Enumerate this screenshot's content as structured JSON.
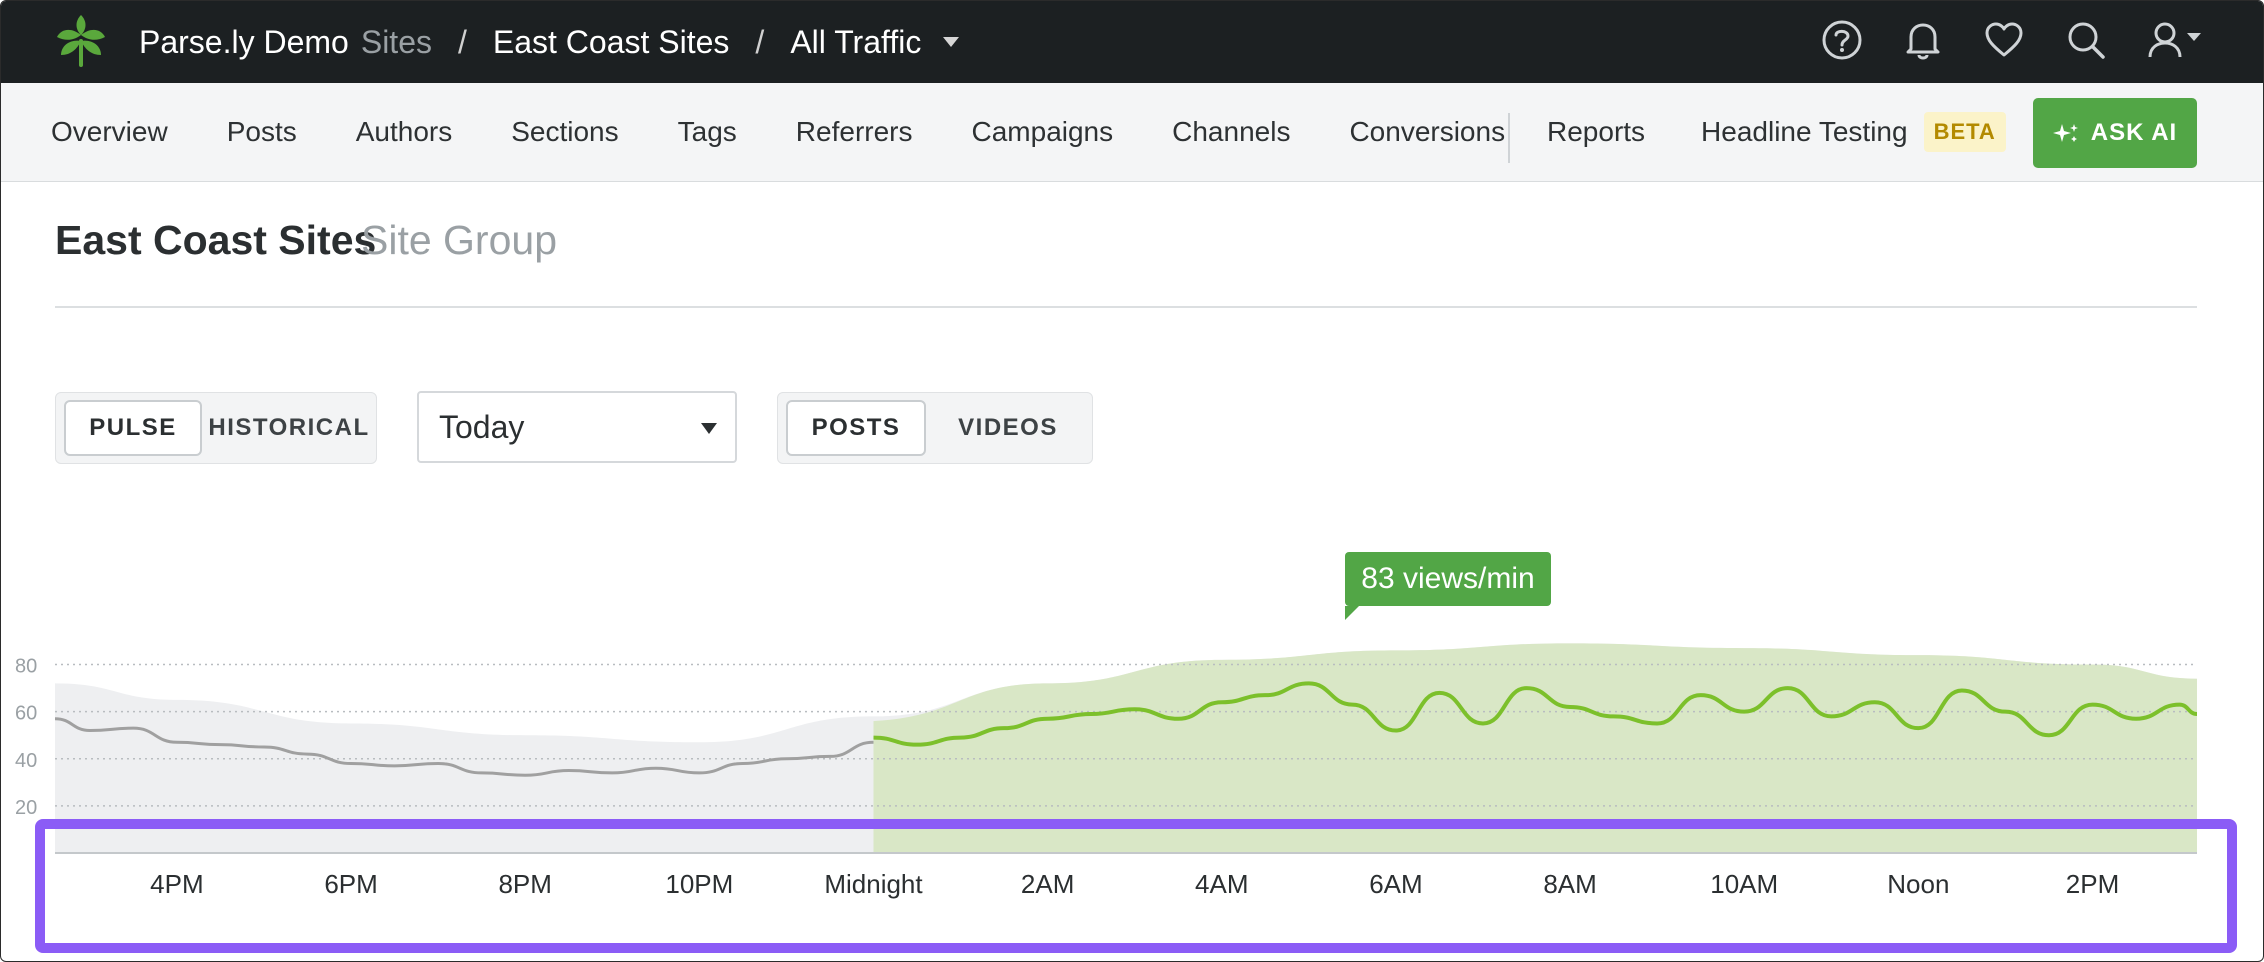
{
  "topbar": {
    "account": "Parse.ly Demo",
    "account_suffix": "Sites",
    "crumb_separator": "/",
    "site_group": "East Coast Sites",
    "traffic": "All Traffic",
    "icons": [
      "help-icon",
      "bell-icon",
      "heart-icon",
      "search-icon",
      "user-icon"
    ]
  },
  "nav": {
    "items": [
      "Overview",
      "Posts",
      "Authors",
      "Sections",
      "Tags",
      "Referrers",
      "Campaigns",
      "Channels",
      "Conversions"
    ],
    "reports": "Reports",
    "headline_testing": "Headline Testing",
    "beta": "BETA",
    "ask_ai": "ASK AI"
  },
  "header": {
    "title": "East Coast Sites",
    "subtitle": "Site Group"
  },
  "controls": {
    "mode": {
      "pulse": "PULSE",
      "historical": "HISTORICAL",
      "selected": "PULSE"
    },
    "period": "Today",
    "content": {
      "posts": "POSTS",
      "videos": "VIDEOS",
      "selected": "POSTS"
    }
  },
  "colors": {
    "topbar": "#1c2022",
    "accent": "#52a646",
    "today_line": "#7cc02b",
    "yesterday_line": "#a0a0a0",
    "highlight": "#8b5cf6"
  },
  "chart_data": {
    "type": "line",
    "yticks": [
      20,
      40,
      60,
      80
    ],
    "ylim": [
      0,
      90
    ],
    "xticks": [
      "4PM",
      "6PM",
      "8PM",
      "10PM",
      "Midnight",
      "2AM",
      "4AM",
      "6AM",
      "8AM",
      "10AM",
      "Noon",
      "2PM"
    ],
    "xlim_hours": [
      14.6,
      39.2
    ],
    "tooltip": "83 views/min",
    "tooltip_hour": 29.2,
    "series": [
      {
        "role": "yesterday",
        "x_hours": [
          14.6,
          15.0,
          15.5,
          16.0,
          16.5,
          17.0,
          17.5,
          18.0,
          18.5,
          19.0,
          19.5,
          20.0,
          20.5,
          21.0,
          21.5,
          22.0,
          22.5,
          23.0,
          23.5,
          24.0
        ],
        "y": [
          57,
          52,
          53,
          47,
          46,
          45,
          42,
          38,
          37,
          38,
          34,
          33,
          35,
          34,
          36,
          34,
          38,
          40,
          41,
          47
        ]
      },
      {
        "role": "today",
        "x_hours": [
          24.0,
          24.5,
          25.0,
          25.5,
          26.0,
          26.5,
          27.0,
          27.5,
          28.0,
          28.5,
          29.0,
          29.5,
          30.0,
          30.5,
          31.0,
          31.5,
          32.0,
          32.5,
          33.0,
          33.5,
          34.0,
          34.5,
          35.0,
          35.5,
          36.0,
          36.5,
          37.0,
          37.5,
          38.0,
          38.5,
          39.0,
          39.2
        ],
        "y": [
          49,
          46,
          49,
          53,
          57,
          59,
          61,
          57,
          64,
          67,
          72,
          63,
          52,
          68,
          55,
          70,
          62,
          58,
          55,
          67,
          60,
          70,
          58,
          64,
          53,
          69,
          60,
          50,
          63,
          57,
          63,
          59
        ]
      },
      {
        "role": "typical",
        "x_hours": [
          14.6,
          16.0,
          18.0,
          20.0,
          22.0,
          24.0,
          26.0,
          28.0,
          30.0,
          32.0,
          34.0,
          36.0,
          38.0,
          39.2
        ],
        "y": [
          72,
          65,
          55,
          50,
          47,
          58,
          72,
          82,
          86,
          89,
          87,
          84,
          80,
          74
        ]
      }
    ]
  }
}
